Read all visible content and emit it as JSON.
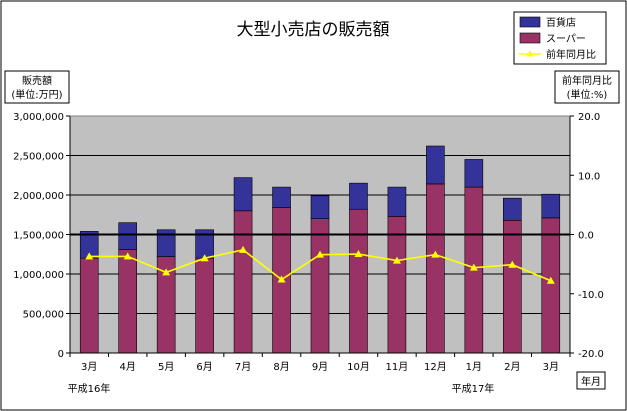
{
  "chart_data": {
    "type": "bar",
    "title": "大型小売店の販売額",
    "categories": [
      "3月",
      "4月",
      "5月",
      "6月",
      "7月",
      "8月",
      "9月",
      "10月",
      "11月",
      "12月",
      "1月",
      "2月",
      "3月"
    ],
    "era_labels": [
      "平成16年",
      "平成17年"
    ],
    "xlabel": "年月",
    "ylabel_left": [
      "販売額",
      "(単位:万円)"
    ],
    "ylabel_right": [
      "前年同月比",
      "(単位:%)"
    ],
    "y_left_ticks": [
      "0",
      "500,000",
      "1,000,000",
      "1,500,000",
      "2,000,000",
      "2,500,000",
      "3,000,000"
    ],
    "y_right_ticks": [
      "-20.0",
      "-10.0",
      "0.0",
      "10.0",
      "20.0"
    ],
    "ylim_left": [
      0,
      3000000
    ],
    "ylim_right": [
      -20,
      20
    ],
    "stacked": true,
    "series": [
      {
        "name": "スーパー",
        "color": "#993366",
        "axis": "left",
        "values": [
          1200000,
          1310000,
          1220000,
          1200000,
          1800000,
          1840000,
          1700000,
          1820000,
          1730000,
          2140000,
          2100000,
          1680000,
          1710000
        ]
      },
      {
        "name": "百貨店",
        "color": "#333399",
        "axis": "left",
        "values": [
          340000,
          340000,
          340000,
          360000,
          420000,
          260000,
          290000,
          330000,
          370000,
          480000,
          350000,
          280000,
          300000
        ]
      }
    ],
    "line_series": {
      "name": "前年同月比",
      "color": "#FFFF00",
      "axis": "right",
      "values": [
        -3.7,
        -3.7,
        -6.4,
        -4.0,
        -2.6,
        -7.6,
        -3.4,
        -3.3,
        -4.4,
        -3.4,
        -5.6,
        -5.1,
        -7.8
      ]
    },
    "legend": {
      "placement": "top-right",
      "entries": [
        "百貨店",
        "スーパー",
        "前年同月比"
      ]
    },
    "grid": true,
    "plot_background": "#C0C0C0",
    "zero_line_right_axis": true
  }
}
